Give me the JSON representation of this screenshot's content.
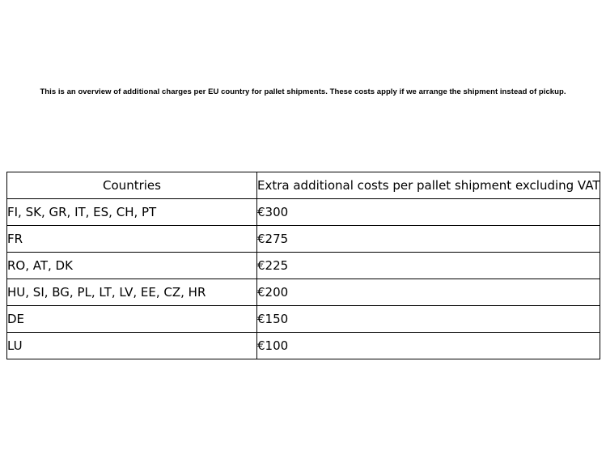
{
  "page": {
    "background_color": "#ffffff",
    "text_color": "#000000",
    "intro_text": "This is an overview of additional charges per EU country for pallet shipments. These costs apply if we arrange the shipment instead of pickup."
  },
  "table": {
    "border_color": "#000000",
    "headers": [
      "Countries",
      "Extra additional costs per pallet shipment excluding VAT"
    ],
    "rows": [
      {
        "countries": "FI, SK, GR, IT, ES, CH, PT",
        "cost": "€300"
      },
      {
        "countries": "FR",
        "cost": "€275"
      },
      {
        "countries": "RO, AT, DK",
        "cost": "€225"
      },
      {
        "countries": "HU, SI, BG, PL, LT, LV, EE, CZ, HR",
        "cost": "€200"
      },
      {
        "countries": "DE",
        "cost": "€150"
      },
      {
        "countries": "LU",
        "cost": "€100"
      }
    ]
  }
}
